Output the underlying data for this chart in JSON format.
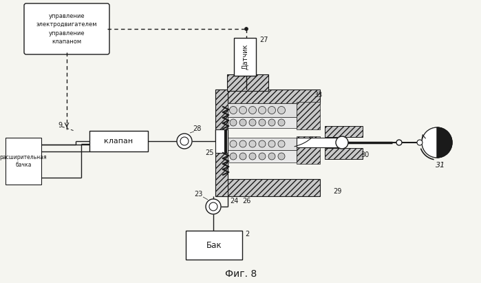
{
  "fig_label": "Фиг. 8",
  "bg_color": "#f5f5f0",
  "labels": {
    "control_box": "управление\nэлектродвигателем\nуправление\nклапаном",
    "valve": "клапан",
    "tank": "Бак",
    "sensor": "Датчик",
    "expansion_tank": "расширительная\nбачка"
  },
  "numbers": {
    "n2": "2",
    "n9": "9",
    "n23": "23",
    "n24": "24",
    "n25": "25",
    "n26": "26",
    "n27": "27",
    "n28": "28",
    "n29": "29",
    "n30": "30",
    "n31": "31",
    "n33": "33"
  }
}
